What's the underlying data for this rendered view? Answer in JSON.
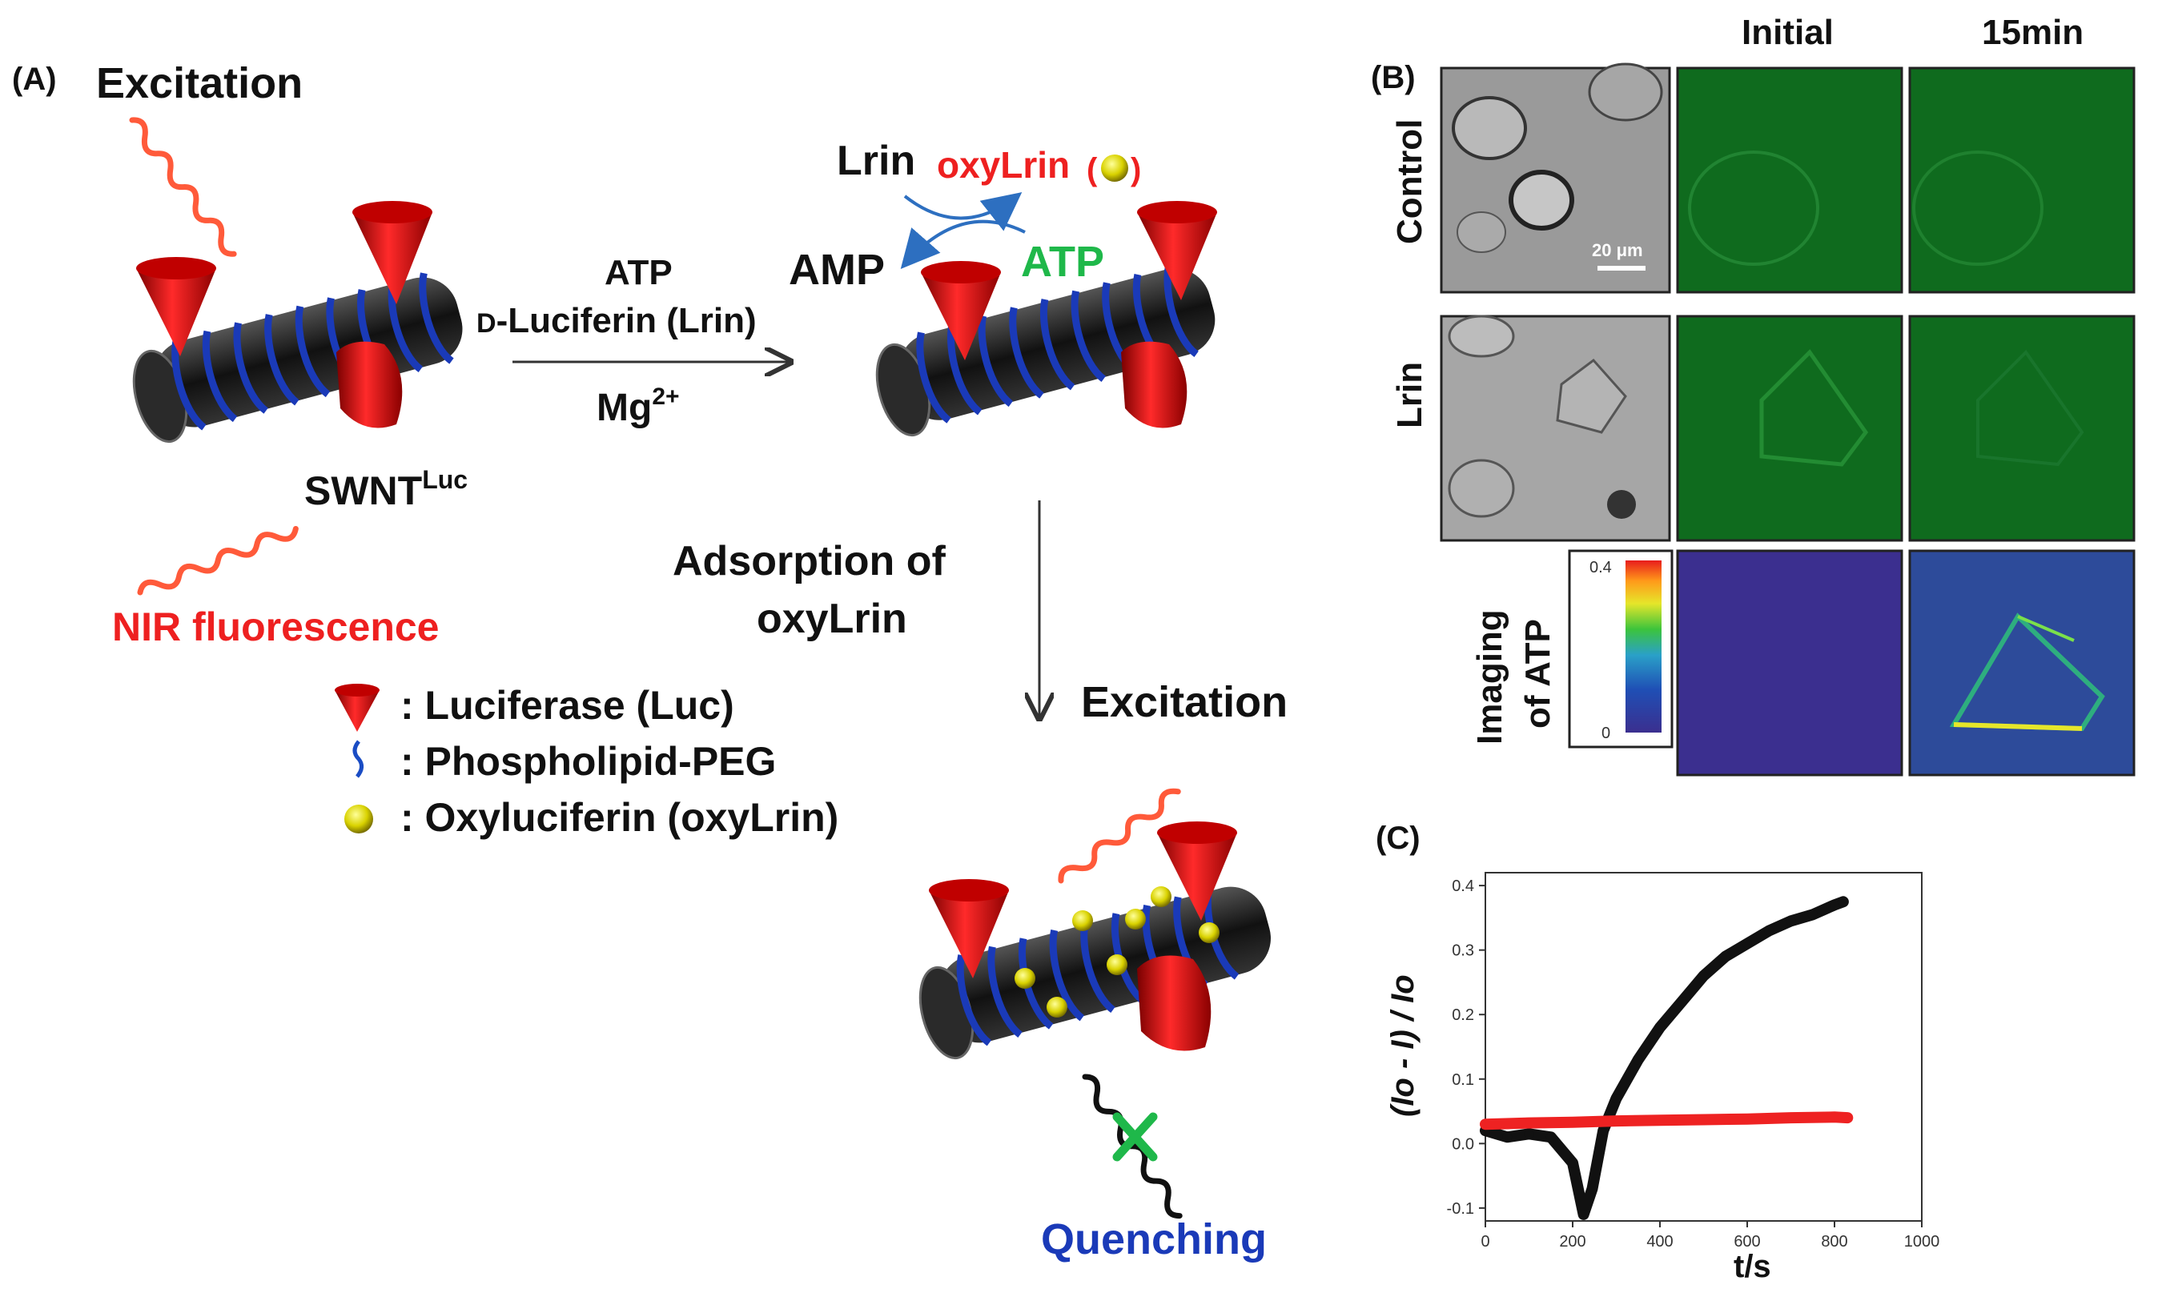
{
  "panel_a": {
    "label": "(A)",
    "excitation_top": "Excitation",
    "swnt_base": "SWNT",
    "swnt_sup": "Luc",
    "nir": "NIR fluorescence",
    "reaction": {
      "atp": "ATP",
      "lrin_prefix": "D",
      "lrin": "-Luciferin (Lrin)",
      "mg_base": "Mg",
      "mg_sup": "2+"
    },
    "cycle": {
      "lrin": "Lrin",
      "oxylrin": "oxyLrin",
      "amp": "AMP",
      "atp": "ATP"
    },
    "adsorption_line1": "Adsorption of",
    "adsorption_line2": "oxyLrin",
    "excitation_bottom": "Excitation",
    "quenching": "Quenching",
    "legend": [
      {
        "icon": "luciferase-icon",
        "text": ": Luciferase (Luc)"
      },
      {
        "icon": "phospholipid-icon",
        "text": ": Phospholipid-PEG"
      },
      {
        "icon": "oxyluciferin-icon",
        "text": ": Oxyluciferin (oxyLrin)"
      }
    ]
  },
  "panel_b": {
    "label": "(B)",
    "col_initial": "Initial",
    "col_15min": "15min",
    "row_control": "Control",
    "row_lrin": "Lrin",
    "row_imaging_line1": "Imaging",
    "row_imaging_line2": "of ATP",
    "scale_bar": "20 μm",
    "colorbar_max": "0.4",
    "colorbar_min": "0",
    "colors": {
      "green_bg": "#0f6b1e",
      "colormap_bg": "#3b2f8f"
    }
  },
  "panel_c": {
    "label": "(C)",
    "chart_data": {
      "type": "scatter",
      "xlabel": "t/s",
      "ylabel": "(Io - I) / Io",
      "xlim": [
        0,
        1000
      ],
      "ylim": [
        -0.12,
        0.42
      ],
      "xticks": [
        "0",
        "200",
        "400",
        "600",
        "800",
        "1000"
      ],
      "yticks": [
        "-0.1",
        "0.0",
        "0.1",
        "0.2",
        "0.3",
        "0.4"
      ],
      "series": [
        {
          "color": "#111111",
          "points": [
            [
              0,
              0.02
            ],
            [
              50,
              0.01
            ],
            [
              100,
              0.015
            ],
            [
              150,
              0.01
            ],
            [
              200,
              -0.03
            ],
            [
              225,
              -0.11
            ],
            [
              245,
              -0.07
            ],
            [
              270,
              0.02
            ],
            [
              300,
              0.07
            ],
            [
              350,
              0.13
            ],
            [
              400,
              0.18
            ],
            [
              450,
              0.22
            ],
            [
              500,
              0.26
            ],
            [
              550,
              0.29
            ],
            [
              600,
              0.31
            ],
            [
              650,
              0.33
            ],
            [
              700,
              0.345
            ],
            [
              750,
              0.355
            ],
            [
              800,
              0.37
            ],
            [
              820,
              0.375
            ]
          ]
        },
        {
          "color": "#ee2222",
          "points": [
            [
              0,
              0.03
            ],
            [
              100,
              0.032
            ],
            [
              200,
              0.033
            ],
            [
              300,
              0.035
            ],
            [
              400,
              0.036
            ],
            [
              500,
              0.037
            ],
            [
              600,
              0.038
            ],
            [
              700,
              0.04
            ],
            [
              800,
              0.041
            ],
            [
              830,
              0.04
            ]
          ]
        }
      ]
    }
  }
}
